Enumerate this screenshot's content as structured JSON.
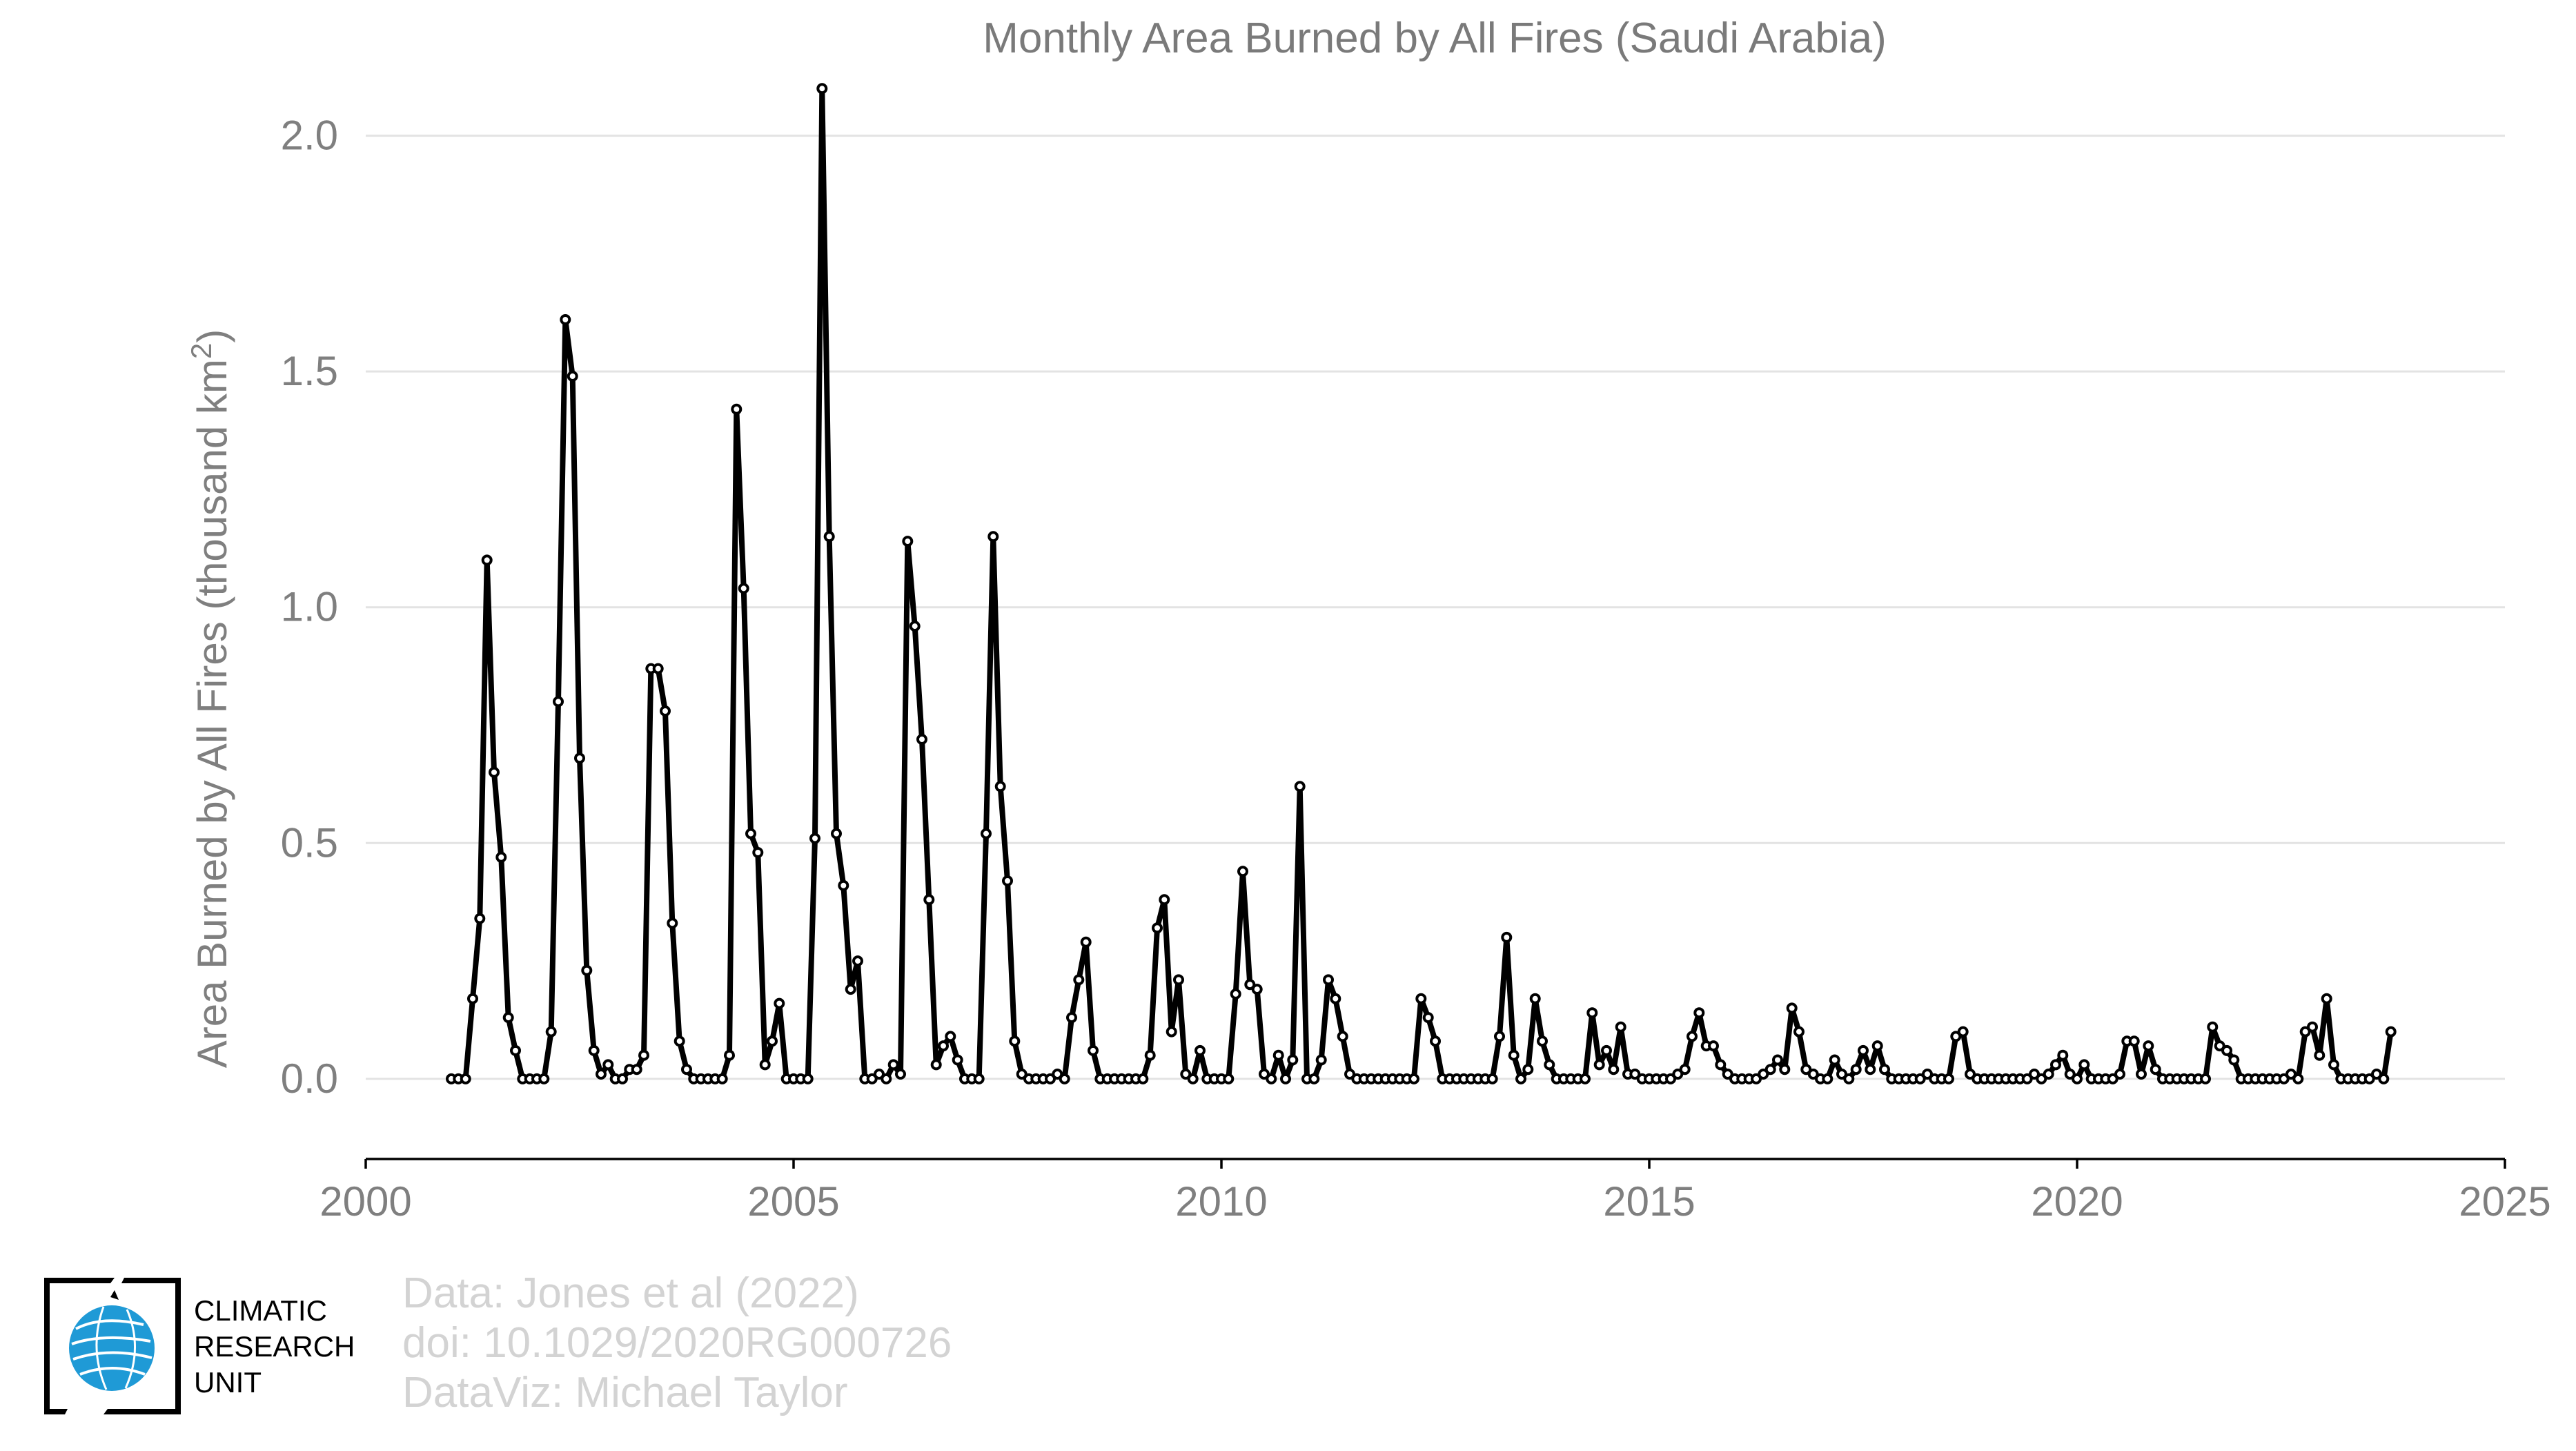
{
  "chart_data": {
    "type": "line",
    "title": "Monthly Area Burned by All Fires (Saudi Arabia)",
    "ylabel": "Area Burned by All Fires (thousand km",
    "ylabel_sup": "2",
    "ylabel_end": ")",
    "xlim": [
      2000,
      2025
    ],
    "ylim": [
      -0.17,
      2.2
    ],
    "xticks": [
      2000,
      2005,
      2010,
      2015,
      2020,
      2025
    ],
    "xtick_labels": [
      "2000",
      "2005",
      "2010",
      "2015",
      "2020",
      "2025"
    ],
    "yticks": [
      0.0,
      0.5,
      1.0,
      1.5,
      2.0
    ],
    "ytick_labels": [
      "0.0",
      "0.5",
      "1.0",
      "1.5",
      "2.0"
    ],
    "grid": "horizontal",
    "legend": "none",
    "series": [
      {
        "start": "2001-01",
        "frequency": "monthly",
        "values": [
          0.0,
          0.0,
          0.0,
          0.17,
          0.34,
          1.1,
          0.65,
          0.47,
          0.13,
          0.06,
          0.0,
          0.0,
          0.0,
          0.0,
          0.1,
          0.8,
          1.61,
          1.49,
          0.68,
          0.23,
          0.06,
          0.01,
          0.03,
          0.0,
          0.0,
          0.02,
          0.02,
          0.05,
          0.87,
          0.87,
          0.78,
          0.33,
          0.08,
          0.02,
          0.0,
          0.0,
          0.0,
          0.0,
          0.0,
          0.05,
          1.42,
          1.04,
          0.52,
          0.48,
          0.03,
          0.08,
          0.16,
          0.0,
          0.0,
          0.0,
          0.0,
          0.51,
          2.1,
          1.15,
          0.52,
          0.41,
          0.19,
          0.25,
          0.0,
          0.0,
          0.01,
          0.0,
          0.03,
          0.01,
          1.14,
          0.96,
          0.72,
          0.38,
          0.03,
          0.07,
          0.09,
          0.04,
          0.0,
          0.0,
          0.0,
          0.52,
          1.15,
          0.62,
          0.42,
          0.08,
          0.01,
          0.0,
          0.0,
          0.0,
          0.0,
          0.01,
          0.0,
          0.13,
          0.21,
          0.29,
          0.06,
          0.0,
          0.0,
          0.0,
          0.0,
          0.0,
          0.0,
          0.0,
          0.05,
          0.32,
          0.38,
          0.1,
          0.21,
          0.01,
          0.0,
          0.06,
          0.0,
          0.0,
          0.0,
          0.0,
          0.18,
          0.44,
          0.2,
          0.19,
          0.01,
          0.0,
          0.05,
          0.0,
          0.04,
          0.62,
          0.0,
          0.0,
          0.04,
          0.21,
          0.17,
          0.09,
          0.01,
          0.0,
          0.0,
          0.0,
          0.0,
          0.0,
          0.0,
          0.0,
          0.0,
          0.0,
          0.17,
          0.13,
          0.08,
          0.0,
          0.0,
          0.0,
          0.0,
          0.0,
          0.0,
          0.0,
          0.0,
          0.09,
          0.3,
          0.05,
          0.0,
          0.02,
          0.17,
          0.08,
          0.03,
          0.0,
          0.0,
          0.0,
          0.0,
          0.0,
          0.14,
          0.03,
          0.06,
          0.02,
          0.11,
          0.01,
          0.01,
          0.0,
          0.0,
          0.0,
          0.0,
          0.0,
          0.01,
          0.02,
          0.09,
          0.14,
          0.07,
          0.07,
          0.03,
          0.01,
          0.0,
          0.0,
          0.0,
          0.0,
          0.01,
          0.02,
          0.04,
          0.02,
          0.15,
          0.1,
          0.02,
          0.01,
          0.0,
          0.0,
          0.04,
          0.01,
          0.0,
          0.02,
          0.06,
          0.02,
          0.07,
          0.02,
          0.0,
          0.0,
          0.0,
          0.0,
          0.0,
          0.01,
          0.0,
          0.0,
          0.0,
          0.09,
          0.1,
          0.01,
          0.0,
          0.0,
          0.0,
          0.0,
          0.0,
          0.0,
          0.0,
          0.0,
          0.01,
          0.0,
          0.01,
          0.03,
          0.05,
          0.01,
          0.0,
          0.03,
          0.0,
          0.0,
          0.0,
          0.0,
          0.01,
          0.08,
          0.08,
          0.01,
          0.07,
          0.02,
          0.0,
          0.0,
          0.0,
          0.0,
          0.0,
          0.0,
          0.0,
          0.11,
          0.07,
          0.06,
          0.04,
          0.0,
          0.0,
          0.0,
          0.0,
          0.0,
          0.0,
          0.0,
          0.01,
          0.0,
          0.1,
          0.11,
          0.05,
          0.17,
          0.03,
          0.0,
          0.0,
          0.0,
          0.0,
          0.0,
          0.01,
          0.0,
          0.1
        ]
      }
    ]
  },
  "credits": {
    "line1": "Data: Jones et al (2022)",
    "line2": "doi: 10.1029/2020RG000726",
    "line3": "DataViz: Michael Taylor"
  },
  "logo": {
    "line1": "CLIMATIC",
    "line2": "RESEARCH",
    "line3": "UNIT",
    "colors": {
      "globe": "#1f9ad6",
      "frame": "#000000"
    }
  },
  "colors": {
    "series": "#000000",
    "marker_fill": "#ffffff",
    "text": "#7f7f7f",
    "credits": "#d3d3d3",
    "grid": "#e3e3e3"
  }
}
